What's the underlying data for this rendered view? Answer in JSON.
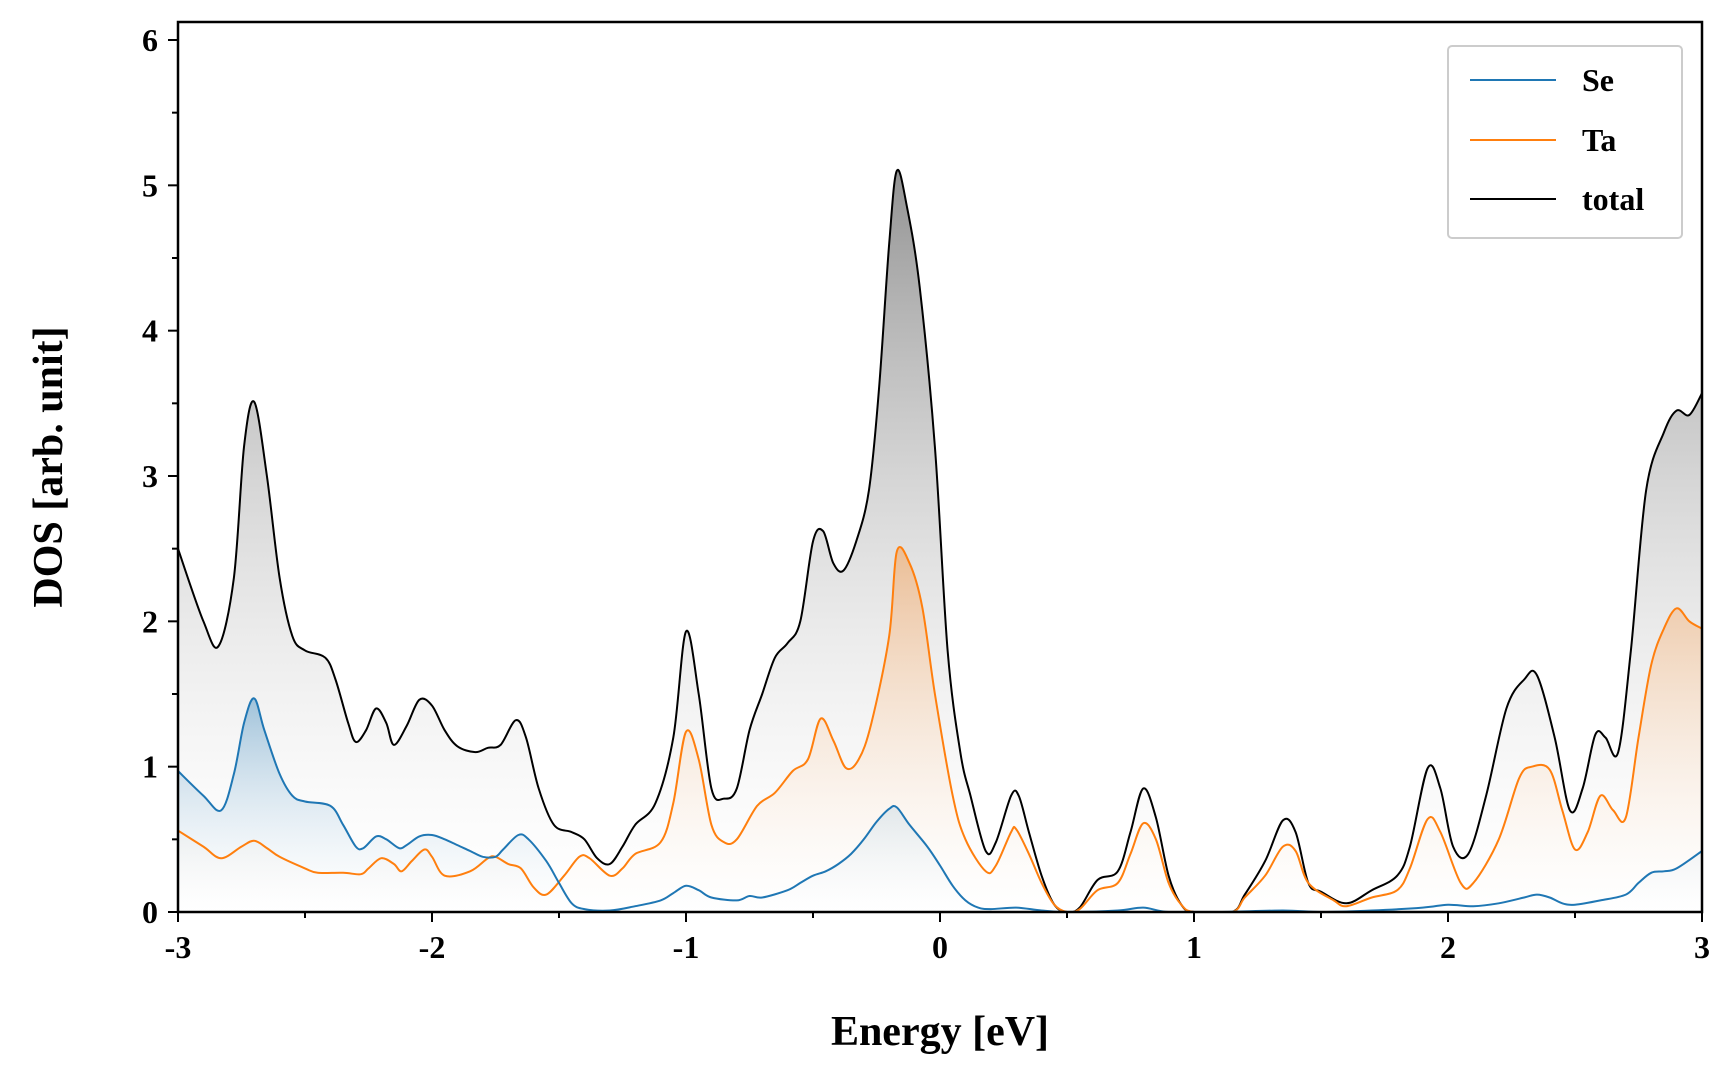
{
  "chart_data": {
    "type": "line",
    "xlabel": "Energy [eV]",
    "ylabel": "DOS [arb. unit]",
    "xlim": [
      -3,
      3
    ],
    "ylim": [
      0,
      6
    ],
    "xticks": [
      "-3",
      "-2",
      "-1",
      "0",
      "1",
      "2",
      "3"
    ],
    "yticks": [
      "0",
      "1",
      "2",
      "3",
      "4",
      "5",
      "6"
    ],
    "grid": false,
    "legend_position": "top-right",
    "filled_under_curves": true,
    "series": [
      {
        "name": "Se",
        "color": "#1f77b4",
        "points": [
          [
            -3.0,
            0.97
          ],
          [
            -2.9,
            0.8
          ],
          [
            -2.83,
            0.7
          ],
          [
            -2.78,
            0.95
          ],
          [
            -2.74,
            1.3
          ],
          [
            -2.7,
            1.47
          ],
          [
            -2.66,
            1.25
          ],
          [
            -2.6,
            0.95
          ],
          [
            -2.55,
            0.8
          ],
          [
            -2.5,
            0.76
          ],
          [
            -2.4,
            0.73
          ],
          [
            -2.35,
            0.6
          ],
          [
            -2.3,
            0.45
          ],
          [
            -2.27,
            0.44
          ],
          [
            -2.22,
            0.52
          ],
          [
            -2.18,
            0.5
          ],
          [
            -2.13,
            0.44
          ],
          [
            -2.1,
            0.46
          ],
          [
            -2.05,
            0.52
          ],
          [
            -2.0,
            0.53
          ],
          [
            -1.95,
            0.5
          ],
          [
            -1.9,
            0.46
          ],
          [
            -1.85,
            0.42
          ],
          [
            -1.8,
            0.38
          ],
          [
            -1.75,
            0.38
          ],
          [
            -1.72,
            0.43
          ],
          [
            -1.66,
            0.53
          ],
          [
            -1.62,
            0.5
          ],
          [
            -1.55,
            0.35
          ],
          [
            -1.5,
            0.2
          ],
          [
            -1.45,
            0.06
          ],
          [
            -1.4,
            0.02
          ],
          [
            -1.3,
            0.01
          ],
          [
            -1.2,
            0.04
          ],
          [
            -1.1,
            0.08
          ],
          [
            -1.05,
            0.13
          ],
          [
            -1.0,
            0.18
          ],
          [
            -0.95,
            0.15
          ],
          [
            -0.9,
            0.1
          ],
          [
            -0.8,
            0.08
          ],
          [
            -0.75,
            0.11
          ],
          [
            -0.7,
            0.1
          ],
          [
            -0.6,
            0.15
          ],
          [
            -0.55,
            0.2
          ],
          [
            -0.5,
            0.25
          ],
          [
            -0.45,
            0.28
          ],
          [
            -0.4,
            0.33
          ],
          [
            -0.35,
            0.4
          ],
          [
            -0.3,
            0.5
          ],
          [
            -0.25,
            0.62
          ],
          [
            -0.2,
            0.71
          ],
          [
            -0.17,
            0.72
          ],
          [
            -0.12,
            0.6
          ],
          [
            -0.05,
            0.45
          ],
          [
            0.0,
            0.32
          ],
          [
            0.05,
            0.18
          ],
          [
            0.1,
            0.08
          ],
          [
            0.15,
            0.03
          ],
          [
            0.2,
            0.02
          ],
          [
            0.3,
            0.03
          ],
          [
            0.4,
            0.01
          ],
          [
            0.5,
            0.0
          ],
          [
            0.7,
            0.01
          ],
          [
            0.8,
            0.03
          ],
          [
            0.9,
            0.0
          ],
          [
            1.1,
            0.0
          ],
          [
            1.35,
            0.01
          ],
          [
            1.5,
            0.0
          ],
          [
            1.7,
            0.01
          ],
          [
            1.9,
            0.03
          ],
          [
            2.0,
            0.05
          ],
          [
            2.1,
            0.04
          ],
          [
            2.2,
            0.06
          ],
          [
            2.3,
            0.1
          ],
          [
            2.35,
            0.12
          ],
          [
            2.4,
            0.1
          ],
          [
            2.45,
            0.06
          ],
          [
            2.5,
            0.05
          ],
          [
            2.6,
            0.08
          ],
          [
            2.7,
            0.12
          ],
          [
            2.75,
            0.2
          ],
          [
            2.8,
            0.27
          ],
          [
            2.85,
            0.28
          ],
          [
            2.9,
            0.3
          ],
          [
            3.0,
            0.42
          ]
        ]
      },
      {
        "name": "Ta",
        "color": "#ff7f0e",
        "points": [
          [
            -3.0,
            0.56
          ],
          [
            -2.9,
            0.45
          ],
          [
            -2.83,
            0.37
          ],
          [
            -2.75,
            0.45
          ],
          [
            -2.7,
            0.49
          ],
          [
            -2.65,
            0.44
          ],
          [
            -2.6,
            0.38
          ],
          [
            -2.5,
            0.3
          ],
          [
            -2.45,
            0.27
          ],
          [
            -2.35,
            0.27
          ],
          [
            -2.28,
            0.26
          ],
          [
            -2.25,
            0.3
          ],
          [
            -2.2,
            0.37
          ],
          [
            -2.15,
            0.33
          ],
          [
            -2.12,
            0.28
          ],
          [
            -2.08,
            0.35
          ],
          [
            -2.03,
            0.43
          ],
          [
            -2.0,
            0.38
          ],
          [
            -1.95,
            0.25
          ],
          [
            -1.85,
            0.28
          ],
          [
            -1.78,
            0.37
          ],
          [
            -1.75,
            0.38
          ],
          [
            -1.7,
            0.33
          ],
          [
            -1.65,
            0.3
          ],
          [
            -1.6,
            0.17
          ],
          [
            -1.55,
            0.12
          ],
          [
            -1.48,
            0.25
          ],
          [
            -1.42,
            0.38
          ],
          [
            -1.38,
            0.37
          ],
          [
            -1.3,
            0.25
          ],
          [
            -1.25,
            0.3
          ],
          [
            -1.2,
            0.4
          ],
          [
            -1.1,
            0.48
          ],
          [
            -1.05,
            0.75
          ],
          [
            -1.0,
            1.24
          ],
          [
            -0.95,
            1.05
          ],
          [
            -0.9,
            0.6
          ],
          [
            -0.85,
            0.48
          ],
          [
            -0.8,
            0.5
          ],
          [
            -0.72,
            0.73
          ],
          [
            -0.65,
            0.82
          ],
          [
            -0.58,
            0.97
          ],
          [
            -0.52,
            1.05
          ],
          [
            -0.47,
            1.33
          ],
          [
            -0.42,
            1.18
          ],
          [
            -0.37,
            0.99
          ],
          [
            -0.32,
            1.05
          ],
          [
            -0.27,
            1.3
          ],
          [
            -0.2,
            1.9
          ],
          [
            -0.17,
            2.48
          ],
          [
            -0.12,
            2.4
          ],
          [
            -0.07,
            2.1
          ],
          [
            -0.02,
            1.5
          ],
          [
            0.05,
            0.8
          ],
          [
            0.1,
            0.5
          ],
          [
            0.18,
            0.28
          ],
          [
            0.22,
            0.32
          ],
          [
            0.28,
            0.55
          ],
          [
            0.3,
            0.57
          ],
          [
            0.35,
            0.4
          ],
          [
            0.4,
            0.2
          ],
          [
            0.45,
            0.05
          ],
          [
            0.5,
            0.0
          ],
          [
            0.55,
            0.02
          ],
          [
            0.62,
            0.15
          ],
          [
            0.7,
            0.2
          ],
          [
            0.75,
            0.4
          ],
          [
            0.8,
            0.61
          ],
          [
            0.85,
            0.5
          ],
          [
            0.9,
            0.2
          ],
          [
            0.95,
            0.05
          ],
          [
            1.0,
            0.0
          ],
          [
            1.15,
            0.0
          ],
          [
            1.2,
            0.1
          ],
          [
            1.28,
            0.25
          ],
          [
            1.35,
            0.45
          ],
          [
            1.4,
            0.42
          ],
          [
            1.45,
            0.2
          ],
          [
            1.55,
            0.08
          ],
          [
            1.6,
            0.04
          ],
          [
            1.7,
            0.1
          ],
          [
            1.8,
            0.15
          ],
          [
            1.85,
            0.3
          ],
          [
            1.92,
            0.64
          ],
          [
            1.97,
            0.55
          ],
          [
            2.05,
            0.2
          ],
          [
            2.1,
            0.2
          ],
          [
            2.2,
            0.5
          ],
          [
            2.28,
            0.92
          ],
          [
            2.33,
            1.0
          ],
          [
            2.4,
            0.98
          ],
          [
            2.45,
            0.7
          ],
          [
            2.5,
            0.43
          ],
          [
            2.55,
            0.55
          ],
          [
            2.6,
            0.8
          ],
          [
            2.65,
            0.7
          ],
          [
            2.7,
            0.65
          ],
          [
            2.75,
            1.2
          ],
          [
            2.8,
            1.7
          ],
          [
            2.85,
            1.95
          ],
          [
            2.9,
            2.09
          ],
          [
            2.95,
            2.0
          ],
          [
            3.0,
            1.95
          ]
        ]
      },
      {
        "name": "total",
        "color": "#000000",
        "points": [
          [
            -3.0,
            2.5
          ],
          [
            -2.9,
            2.0
          ],
          [
            -2.84,
            1.83
          ],
          [
            -2.78,
            2.3
          ],
          [
            -2.74,
            3.2
          ],
          [
            -2.7,
            3.51
          ],
          [
            -2.65,
            3.0
          ],
          [
            -2.6,
            2.3
          ],
          [
            -2.55,
            1.9
          ],
          [
            -2.5,
            1.8
          ],
          [
            -2.42,
            1.75
          ],
          [
            -2.38,
            1.6
          ],
          [
            -2.33,
            1.3
          ],
          [
            -2.3,
            1.17
          ],
          [
            -2.26,
            1.25
          ],
          [
            -2.22,
            1.4
          ],
          [
            -2.18,
            1.3
          ],
          [
            -2.15,
            1.15
          ],
          [
            -2.1,
            1.28
          ],
          [
            -2.05,
            1.46
          ],
          [
            -2.0,
            1.42
          ],
          [
            -1.95,
            1.25
          ],
          [
            -1.9,
            1.14
          ],
          [
            -1.83,
            1.1
          ],
          [
            -1.78,
            1.13
          ],
          [
            -1.73,
            1.15
          ],
          [
            -1.67,
            1.32
          ],
          [
            -1.63,
            1.2
          ],
          [
            -1.58,
            0.85
          ],
          [
            -1.52,
            0.6
          ],
          [
            -1.45,
            0.55
          ],
          [
            -1.4,
            0.5
          ],
          [
            -1.35,
            0.37
          ],
          [
            -1.3,
            0.33
          ],
          [
            -1.25,
            0.45
          ],
          [
            -1.2,
            0.6
          ],
          [
            -1.12,
            0.75
          ],
          [
            -1.05,
            1.2
          ],
          [
            -1.0,
            1.93
          ],
          [
            -0.95,
            1.5
          ],
          [
            -0.9,
            0.85
          ],
          [
            -0.85,
            0.78
          ],
          [
            -0.8,
            0.85
          ],
          [
            -0.75,
            1.25
          ],
          [
            -0.7,
            1.5
          ],
          [
            -0.65,
            1.75
          ],
          [
            -0.6,
            1.85
          ],
          [
            -0.55,
            2.0
          ],
          [
            -0.5,
            2.55
          ],
          [
            -0.46,
            2.62
          ],
          [
            -0.42,
            2.4
          ],
          [
            -0.38,
            2.35
          ],
          [
            -0.33,
            2.55
          ],
          [
            -0.28,
            2.9
          ],
          [
            -0.24,
            3.6
          ],
          [
            -0.2,
            4.6
          ],
          [
            -0.17,
            5.1
          ],
          [
            -0.13,
            4.85
          ],
          [
            -0.08,
            4.3
          ],
          [
            -0.02,
            3.2
          ],
          [
            0.03,
            1.8
          ],
          [
            0.08,
            1.1
          ],
          [
            0.12,
            0.8
          ],
          [
            0.18,
            0.42
          ],
          [
            0.22,
            0.48
          ],
          [
            0.28,
            0.8
          ],
          [
            0.31,
            0.8
          ],
          [
            0.35,
            0.55
          ],
          [
            0.4,
            0.25
          ],
          [
            0.45,
            0.05
          ],
          [
            0.5,
            0.0
          ],
          [
            0.55,
            0.03
          ],
          [
            0.62,
            0.22
          ],
          [
            0.7,
            0.28
          ],
          [
            0.75,
            0.55
          ],
          [
            0.8,
            0.85
          ],
          [
            0.85,
            0.65
          ],
          [
            0.9,
            0.25
          ],
          [
            0.95,
            0.05
          ],
          [
            1.0,
            0.0
          ],
          [
            1.15,
            0.0
          ],
          [
            1.2,
            0.12
          ],
          [
            1.28,
            0.35
          ],
          [
            1.35,
            0.63
          ],
          [
            1.4,
            0.55
          ],
          [
            1.45,
            0.2
          ],
          [
            1.5,
            0.14
          ],
          [
            1.6,
            0.06
          ],
          [
            1.7,
            0.15
          ],
          [
            1.8,
            0.25
          ],
          [
            1.85,
            0.45
          ],
          [
            1.92,
            0.99
          ],
          [
            1.97,
            0.85
          ],
          [
            2.02,
            0.45
          ],
          [
            2.08,
            0.4
          ],
          [
            2.15,
            0.8
          ],
          [
            2.23,
            1.4
          ],
          [
            2.3,
            1.6
          ],
          [
            2.35,
            1.63
          ],
          [
            2.42,
            1.2
          ],
          [
            2.48,
            0.7
          ],
          [
            2.53,
            0.85
          ],
          [
            2.58,
            1.22
          ],
          [
            2.62,
            1.2
          ],
          [
            2.67,
            1.1
          ],
          [
            2.72,
            1.8
          ],
          [
            2.78,
            2.9
          ],
          [
            2.85,
            3.3
          ],
          [
            2.9,
            3.45
          ],
          [
            2.95,
            3.42
          ],
          [
            3.0,
            3.57
          ]
        ]
      }
    ]
  }
}
